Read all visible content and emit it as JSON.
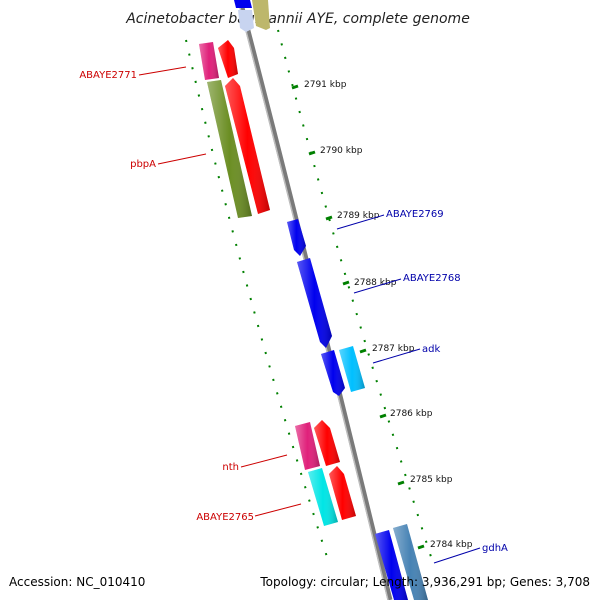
{
  "title": "Acinetobacter baumannii AYE, complete genome",
  "footer": {
    "accession": "Accession: NC_010410",
    "topology": "Topology: circular; Length: 3,936,291 bp; Genes: 3,708"
  },
  "scale_labels": [
    "2791 kbp",
    "2790 kbp",
    "2789 kbp",
    "2788 kbp",
    "2787 kbp",
    "2786 kbp",
    "2785 kbp",
    "2784 kbp"
  ],
  "genes_left": [
    {
      "name": "ABAYE2771",
      "color": "#e0207a"
    },
    {
      "name": "pbpA",
      "color": "#6b8e23"
    },
    {
      "name": "nth",
      "color": "#e0207a"
    },
    {
      "name": "ABAYE2765",
      "color": "#00e5e5"
    }
  ],
  "genes_right": [
    {
      "name": "ABAYE2769",
      "color": "#0000ee"
    },
    {
      "name": "ABAYE2768",
      "color": "#0000ee"
    },
    {
      "name": "adk",
      "color": "#00bfff"
    },
    {
      "name": "gdhA",
      "color": "#4682b4"
    }
  ],
  "colors": {
    "backbone": "#888888",
    "ticks": "#008000",
    "cds": "#ff0000",
    "label_left": "#cc0000",
    "label_right": "#0000aa"
  }
}
